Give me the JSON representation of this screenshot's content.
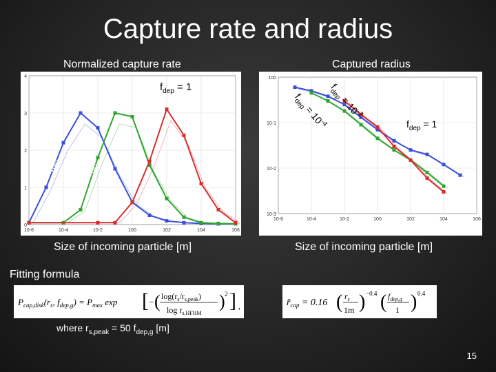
{
  "slide": {
    "title": "Capture rate and radius",
    "number": "15",
    "left_caption": "Normalized capture rate",
    "right_caption": "Captured radius",
    "left_xlabel": "Size of incoming particle [m]",
    "right_xlabel": "Size of incoming particle [m]",
    "fitting_label": "Fitting formula",
    "where_text": "where r",
    "where_sub": "s,peak",
    "where_rest": " = 50 f",
    "where_sub2": "dep,g",
    "where_unit": " [m]"
  },
  "annotations": {
    "fdep_label": "f",
    "dep_sub": "dep",
    "eq_one": " = 1",
    "eq_minus4": " = 10",
    "exp_minus4": "-4",
    "eq_minus2": " = 10",
    "exp_minus2": "-2"
  },
  "formulas": {
    "left": "P_cap,disk(r_s, f_dep,g) = P_max exp[ -( log(r_s/r_s,peak) / log r_s,HFHM )^2 ]",
    "right": "r_cap = 0.16 (r_s / 1m)^-0.4 (f_dep,g / 1)^0.4"
  },
  "colors": {
    "fdep_1e-4": "#3a50d8",
    "fdep_1e-2": "#2fa52f",
    "fdep_1": "#d62d2d",
    "gray": "#9a9a9a"
  },
  "chart_data": [
    {
      "type": "line",
      "title": "Normalized capture rate",
      "xlabel": "Size of incoming particle [m]",
      "x_scale": "log",
      "xlim": [
        1e-06,
        1000000.0
      ],
      "ylim": [
        0,
        4
      ],
      "x_ticks": [
        "10^-6",
        "10^-4",
        "10^-2",
        "10^0",
        "10^2",
        "10^4",
        "10^6"
      ],
      "y_ticks": [
        "0",
        "1",
        "2",
        "3",
        "4"
      ],
      "series": [
        {
          "name": "fdep = 10^-4",
          "color": "#3a50d8",
          "x": [
            1e-06,
            1e-05,
            0.0001,
            0.001,
            0.01,
            0.1,
            1,
            10,
            100,
            1000,
            10000.0,
            100000.0,
            1000000.0
          ],
          "y": [
            0.05,
            1.0,
            2.2,
            3.0,
            2.6,
            1.5,
            0.6,
            0.25,
            0.1,
            0.05,
            0.03,
            0.02,
            0.02
          ]
        },
        {
          "name": "fdep = 10^-2",
          "color": "#2fa52f",
          "x": [
            1e-06,
            0.0001,
            0.001,
            0.01,
            0.1,
            1,
            10,
            100,
            1000,
            10000.0,
            100000.0,
            1000000.0
          ],
          "y": [
            0.05,
            0.05,
            0.4,
            1.8,
            3.0,
            2.9,
            1.6,
            0.7,
            0.2,
            0.05,
            0.03,
            0.02
          ]
        },
        {
          "name": "fdep = 1",
          "color": "#d62d2d",
          "x": [
            1e-06,
            0.01,
            0.1,
            1,
            10,
            100,
            1000,
            10000.0,
            100000.0,
            1000000.0
          ],
          "y": [
            0.05,
            0.05,
            0.05,
            0.6,
            1.7,
            3.1,
            2.4,
            1.1,
            0.4,
            0.05
          ]
        }
      ]
    },
    {
      "type": "line",
      "title": "Captured radius",
      "xlabel": "Size of incoming particle [m]",
      "x_scale": "log",
      "y_scale": "log",
      "xlim": [
        1e-06,
        1000000.0
      ],
      "ylim": [
        0.001,
        1
      ],
      "x_ticks": [
        "10^-6",
        "10^-4",
        "10^-2",
        "10^0",
        "10^2",
        "10^4",
        "10^6"
      ],
      "y_ticks": [
        "10^0",
        "10^-1",
        "10^-2",
        "10^-3"
      ],
      "series": [
        {
          "name": "fdep = 10^-4",
          "color": "#3a50d8",
          "x": [
            1e-05,
            0.0001,
            0.001,
            0.01,
            0.1,
            1,
            10,
            100,
            1000,
            10000.0,
            100000.0
          ],
          "y": [
            0.6,
            0.5,
            0.38,
            0.25,
            0.13,
            0.07,
            0.04,
            0.025,
            0.02,
            0.012,
            0.007
          ]
        },
        {
          "name": "fdep = 10^-2",
          "color": "#2fa52f",
          "x": [
            0.0001,
            0.001,
            0.01,
            0.1,
            1,
            10,
            100,
            1000,
            10000.0
          ],
          "y": [
            0.45,
            0.3,
            0.18,
            0.09,
            0.045,
            0.025,
            0.015,
            0.008,
            0.004
          ]
        },
        {
          "name": "fdep = 1",
          "color": "#d62d2d",
          "x": [
            0.01,
            0.1,
            1,
            10,
            100,
            1000,
            10000.0
          ],
          "y": [
            0.3,
            0.15,
            0.08,
            0.03,
            0.015,
            0.006,
            0.003
          ]
        }
      ]
    }
  ]
}
